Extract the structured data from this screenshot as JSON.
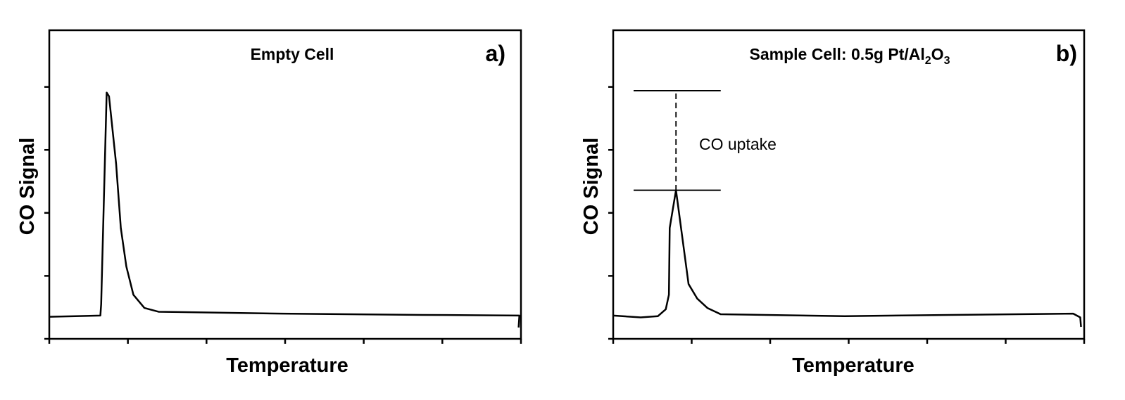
{
  "chart_data": [
    {
      "type": "line",
      "title": "Empty Cell",
      "panel_label": "a)",
      "xlabel": "Temperature",
      "ylabel": "CO Signal",
      "xlim": [
        0,
        6
      ],
      "ylim": [
        0,
        4.9
      ],
      "x_ticks": [
        0,
        1,
        2,
        3,
        4,
        5,
        6
      ],
      "y_ticks": [
        0,
        1,
        2,
        3,
        4
      ],
      "tick_labels_shown": false,
      "grid": false,
      "line_color": "#000000",
      "series": [
        {
          "x": [
            0,
            0.65,
            0.66,
            0.73,
            0.76,
            0.85,
            0.91,
            0.98,
            1.07,
            1.21,
            1.39,
            2.96,
            4.75,
            5.98,
            5.97
          ],
          "y": [
            0.35,
            0.37,
            0.55,
            3.91,
            3.85,
            2.78,
            1.76,
            1.15,
            0.7,
            0.49,
            0.43,
            0.4,
            0.38,
            0.37,
            0.18
          ]
        }
      ]
    },
    {
      "type": "line",
      "title": "Sample Cell: 0.5g Pt/Al",
      "title_sub1": "2",
      "title_mid": "O",
      "title_sub2": "3",
      "panel_label": "b)",
      "xlabel": "Temperature",
      "ylabel": "CO Signal",
      "xlim": [
        0,
        6
      ],
      "ylim": [
        0,
        4.9
      ],
      "x_ticks": [
        0,
        1,
        2,
        3,
        4,
        5,
        6
      ],
      "y_ticks": [
        0,
        1,
        2,
        3,
        4
      ],
      "tick_labels_shown": false,
      "grid": false,
      "line_color": "#000000",
      "series": [
        {
          "x": [
            0,
            0.35,
            0.57,
            0.67,
            0.71,
            0.72,
            0.8,
            0.87,
            0.96,
            1.07,
            1.2,
            1.37,
            2.95,
            4.29,
            5.86,
            5.95,
            5.96
          ],
          "y": [
            0.37,
            0.34,
            0.36,
            0.47,
            0.7,
            1.76,
            2.36,
            1.71,
            0.87,
            0.64,
            0.49,
            0.39,
            0.36,
            0.38,
            0.4,
            0.34,
            0.19
          ]
        }
      ],
      "annotations": {
        "text": "CO uptake",
        "upper_level": 3.94,
        "lower_level": 2.36,
        "x_range": [
          0.26,
          1.37
        ],
        "dash_x": 0.8
      }
    }
  ]
}
